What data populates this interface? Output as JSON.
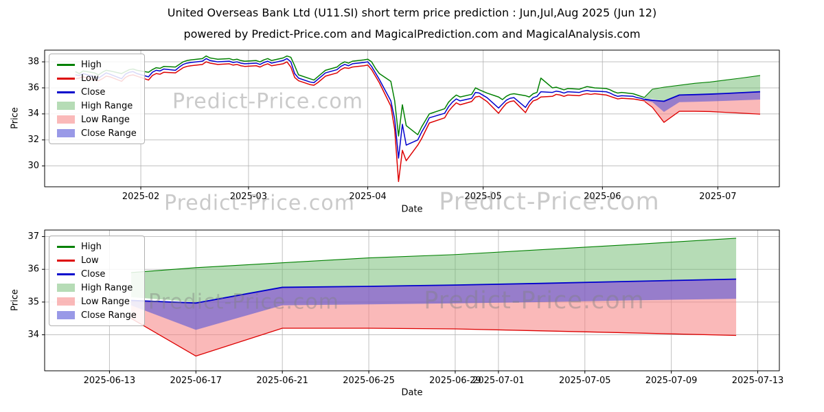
{
  "header": {
    "title": "United Overseas Bank Ltd (U11.SI) short term price prediction : Jun,Jul,Aug 2025 (Jun 12)",
    "subtitle": "powered by Predict-Price.com and MagicalPrediction.com and MagicalAnalysis.com"
  },
  "watermark": "Predict-Price.com",
  "colors": {
    "high": "#008000",
    "low": "#dd0000",
    "close": "#0000cc",
    "high_range": "rgba(110,185,110,0.5)",
    "low_range": "rgba(246,128,128,0.55)",
    "close_range": "rgba(85,85,215,0.6)",
    "grid": "rgba(178,178,178,0.8)",
    "axis": "#000000"
  },
  "legend": {
    "items": [
      {
        "label": "High",
        "type": "line",
        "color_key": "high"
      },
      {
        "label": "Low",
        "type": "line",
        "color_key": "low"
      },
      {
        "label": "Close",
        "type": "line",
        "color_key": "close"
      },
      {
        "label": "High Range",
        "type": "patch",
        "color_key": "high_range"
      },
      {
        "label": "Low Range",
        "type": "patch",
        "color_key": "low_range"
      },
      {
        "label": "Close Range",
        "type": "patch",
        "color_key": "close_range"
      }
    ]
  },
  "chart_data": [
    {
      "type": "line",
      "title": "",
      "xlabel": "Date",
      "ylabel": "Price",
      "y_domain": [
        28.4,
        38.9
      ],
      "x_domain": [
        "2025-01-07",
        "2025-07-17"
      ],
      "y_ticks": [
        30,
        32,
        34,
        36,
        38
      ],
      "x_ticks": [
        {
          "date": "2025-02-01",
          "label": "2025-02"
        },
        {
          "date": "2025-03-01",
          "label": "2025-03"
        },
        {
          "date": "2025-04-01",
          "label": "2025-04"
        },
        {
          "date": "2025-05-01",
          "label": "2025-05"
        },
        {
          "date": "2025-06-01",
          "label": "2025-06"
        },
        {
          "date": "2025-07-01",
          "label": "2025-07"
        }
      ],
      "historical": {
        "dates": [
          "2025-01-15",
          "2025-01-16",
          "2025-01-17",
          "2025-01-20",
          "2025-01-21",
          "2025-01-22",
          "2025-01-23",
          "2025-01-24",
          "2025-01-27",
          "2025-01-28",
          "2025-01-29",
          "2025-01-30",
          "2025-01-31",
          "2025-02-03",
          "2025-02-04",
          "2025-02-05",
          "2025-02-06",
          "2025-02-07",
          "2025-02-10",
          "2025-02-11",
          "2025-02-12",
          "2025-02-13",
          "2025-02-14",
          "2025-02-17",
          "2025-02-18",
          "2025-02-19",
          "2025-02-20",
          "2025-02-21",
          "2025-02-24",
          "2025-02-25",
          "2025-02-26",
          "2025-02-27",
          "2025-02-28",
          "2025-03-03",
          "2025-03-04",
          "2025-03-05",
          "2025-03-06",
          "2025-03-07",
          "2025-03-10",
          "2025-03-11",
          "2025-03-12",
          "2025-03-13",
          "2025-03-14",
          "2025-03-17",
          "2025-03-18",
          "2025-03-19",
          "2025-03-20",
          "2025-03-21",
          "2025-03-24",
          "2025-03-25",
          "2025-03-26",
          "2025-03-27",
          "2025-03-28",
          "2025-03-31",
          "2025-04-01",
          "2025-04-02",
          "2025-04-03",
          "2025-04-04",
          "2025-04-07",
          "2025-04-08",
          "2025-04-09",
          "2025-04-10",
          "2025-04-11",
          "2025-04-14",
          "2025-04-15",
          "2025-04-16",
          "2025-04-17",
          "2025-04-21",
          "2025-04-22",
          "2025-04-23",
          "2025-04-24",
          "2025-04-25",
          "2025-04-28",
          "2025-04-29",
          "2025-04-30",
          "2025-05-02",
          "2025-05-05",
          "2025-05-06",
          "2025-05-07",
          "2025-05-08",
          "2025-05-09",
          "2025-05-12",
          "2025-05-13",
          "2025-05-14",
          "2025-05-15",
          "2025-05-16",
          "2025-05-19",
          "2025-05-20",
          "2025-05-21",
          "2025-05-22",
          "2025-05-23",
          "2025-05-26",
          "2025-05-27",
          "2025-05-28",
          "2025-05-29",
          "2025-05-30",
          "2025-06-02",
          "2025-06-03",
          "2025-06-04",
          "2025-06-05",
          "2025-06-06",
          "2025-06-09",
          "2025-06-10",
          "2025-06-11",
          "2025-06-12"
        ],
        "high": [
          37.25,
          37.1,
          37.3,
          37.15,
          37.0,
          37.2,
          37.35,
          37.3,
          37.1,
          37.25,
          37.4,
          37.45,
          37.35,
          37.2,
          37.4,
          37.55,
          37.5,
          37.65,
          37.6,
          37.8,
          38.0,
          38.1,
          38.15,
          38.25,
          38.45,
          38.3,
          38.25,
          38.2,
          38.25,
          38.15,
          38.2,
          38.1,
          38.05,
          38.1,
          38.0,
          38.15,
          38.25,
          38.1,
          38.3,
          38.45,
          38.35,
          37.7,
          37.0,
          36.7,
          36.6,
          36.85,
          37.1,
          37.35,
          37.6,
          37.85,
          38.0,
          37.9,
          38.05,
          38.15,
          38.2,
          38.0,
          37.5,
          37.1,
          36.5,
          35.0,
          32.3,
          34.7,
          33.1,
          32.4,
          33.0,
          33.5,
          34.0,
          34.4,
          34.9,
          35.2,
          35.45,
          35.3,
          35.5,
          36.0,
          35.85,
          35.6,
          35.3,
          35.1,
          35.35,
          35.5,
          35.55,
          35.4,
          35.3,
          35.55,
          35.65,
          36.75,
          36.0,
          36.05,
          35.95,
          35.85,
          35.95,
          35.9,
          36.0,
          36.1,
          36.05,
          36.0,
          35.95,
          35.85,
          35.7,
          35.6,
          35.65,
          35.55,
          35.45,
          35.35,
          35.25
        ],
        "low": [
          36.7,
          36.75,
          36.85,
          36.6,
          36.55,
          36.7,
          36.9,
          36.85,
          36.5,
          36.8,
          36.95,
          37.0,
          36.9,
          36.6,
          36.95,
          37.1,
          37.05,
          37.2,
          37.15,
          37.35,
          37.55,
          37.65,
          37.7,
          37.8,
          38.0,
          37.9,
          37.85,
          37.8,
          37.85,
          37.75,
          37.8,
          37.7,
          37.65,
          37.7,
          37.6,
          37.75,
          37.85,
          37.7,
          37.85,
          38.0,
          37.6,
          36.8,
          36.55,
          36.25,
          36.2,
          36.4,
          36.65,
          36.9,
          37.15,
          37.4,
          37.55,
          37.5,
          37.6,
          37.7,
          37.75,
          37.4,
          36.9,
          36.4,
          34.6,
          32.8,
          28.8,
          31.2,
          30.4,
          31.6,
          32.1,
          32.7,
          33.3,
          33.7,
          34.2,
          34.55,
          34.85,
          34.7,
          34.95,
          35.3,
          35.35,
          34.95,
          34.05,
          34.45,
          34.8,
          34.95,
          35.0,
          34.1,
          34.65,
          35.0,
          35.1,
          35.3,
          35.35,
          35.5,
          35.45,
          35.35,
          35.45,
          35.4,
          35.5,
          35.55,
          35.5,
          35.55,
          35.45,
          35.35,
          35.25,
          35.15,
          35.2,
          35.15,
          35.1,
          35.05,
          35.0
        ],
        "close": [
          37.0,
          36.95,
          37.1,
          36.85,
          36.75,
          36.95,
          37.15,
          37.05,
          36.7,
          37.05,
          37.2,
          37.25,
          37.1,
          36.85,
          37.2,
          37.35,
          37.3,
          37.45,
          37.35,
          37.6,
          37.8,
          37.9,
          37.95,
          38.05,
          38.25,
          38.1,
          38.05,
          38.0,
          38.05,
          37.95,
          38.0,
          37.9,
          37.85,
          37.9,
          37.8,
          37.95,
          38.05,
          37.9,
          38.1,
          38.25,
          38.0,
          37.1,
          36.75,
          36.45,
          36.4,
          36.65,
          36.9,
          37.15,
          37.4,
          37.65,
          37.8,
          37.7,
          37.85,
          37.95,
          38.0,
          37.65,
          37.15,
          36.65,
          35.0,
          33.6,
          30.6,
          33.2,
          31.6,
          32.0,
          32.6,
          33.1,
          33.7,
          34.05,
          34.55,
          34.9,
          35.15,
          35.0,
          35.2,
          35.65,
          35.6,
          35.25,
          34.45,
          34.75,
          35.05,
          35.2,
          35.25,
          34.5,
          34.95,
          35.25,
          35.35,
          35.7,
          35.65,
          35.75,
          35.7,
          35.6,
          35.7,
          35.65,
          35.75,
          35.8,
          35.75,
          35.75,
          35.7,
          35.6,
          35.45,
          35.35,
          35.4,
          35.35,
          35.25,
          35.2,
          35.1
        ]
      },
      "forecast": {
        "dates": [
          "2025-06-12",
          "2025-06-14",
          "2025-06-17",
          "2025-06-21",
          "2025-06-25",
          "2025-06-29",
          "2025-07-03",
          "2025-07-07",
          "2025-07-12"
        ],
        "high_upper": [
          35.3,
          35.9,
          36.05,
          36.2,
          36.35,
          36.45,
          36.6,
          36.75,
          36.95
        ],
        "high_lower": [
          35.15,
          35.15,
          35.0,
          35.45,
          35.5,
          35.52,
          35.58,
          35.63,
          35.7
        ],
        "close_upper": [
          35.12,
          35.05,
          34.97,
          35.45,
          35.48,
          35.52,
          35.57,
          35.63,
          35.7
        ],
        "close_lower": [
          35.02,
          34.9,
          34.15,
          34.9,
          34.93,
          34.96,
          35.0,
          35.05,
          35.1
        ],
        "low_upper": [
          35.12,
          35.05,
          34.97,
          35.45,
          35.48,
          35.52,
          35.57,
          35.63,
          35.7
        ],
        "low_lower": [
          34.95,
          34.5,
          33.35,
          34.2,
          34.2,
          34.18,
          34.12,
          34.06,
          33.98
        ]
      }
    },
    {
      "type": "line",
      "title": "",
      "xlabel": "Date",
      "ylabel": "Price",
      "y_domain": [
        32.9,
        37.2
      ],
      "x_domain": [
        "2025-06-10",
        "2025-07-14"
      ],
      "y_ticks": [
        34,
        35,
        36,
        37
      ],
      "x_ticks": [
        {
          "date": "2025-06-13",
          "label": "2025-06-13"
        },
        {
          "date": "2025-06-17",
          "label": "2025-06-17"
        },
        {
          "date": "2025-06-21",
          "label": "2025-06-21"
        },
        {
          "date": "2025-06-25",
          "label": "2025-06-25"
        },
        {
          "date": "2025-06-29",
          "label": "2025-06-29"
        },
        {
          "date": "2025-07-01",
          "label": "2025-07-01"
        },
        {
          "date": "2025-07-05",
          "label": "2025-07-05"
        },
        {
          "date": "2025-07-09",
          "label": "2025-07-09"
        },
        {
          "date": "2025-07-13",
          "label": "2025-07-13"
        }
      ],
      "forecast": {
        "dates": [
          "2025-06-14",
          "2025-06-17",
          "2025-06-21",
          "2025-06-25",
          "2025-06-29",
          "2025-07-03",
          "2025-07-07",
          "2025-07-12"
        ],
        "high_upper": [
          35.9,
          36.05,
          36.2,
          36.35,
          36.45,
          36.6,
          36.75,
          36.95
        ],
        "high_lower": [
          35.15,
          35.0,
          35.45,
          35.5,
          35.52,
          35.58,
          35.63,
          35.7
        ],
        "close_upper": [
          35.05,
          34.97,
          35.45,
          35.48,
          35.52,
          35.57,
          35.63,
          35.7
        ],
        "close_lower": [
          34.9,
          34.15,
          34.9,
          34.93,
          34.96,
          35.0,
          35.05,
          35.1
        ],
        "low_upper": [
          35.05,
          34.97,
          35.45,
          35.48,
          35.52,
          35.57,
          35.63,
          35.7
        ],
        "low_lower": [
          34.5,
          33.35,
          34.2,
          34.2,
          34.18,
          34.12,
          34.06,
          33.98
        ]
      }
    }
  ]
}
